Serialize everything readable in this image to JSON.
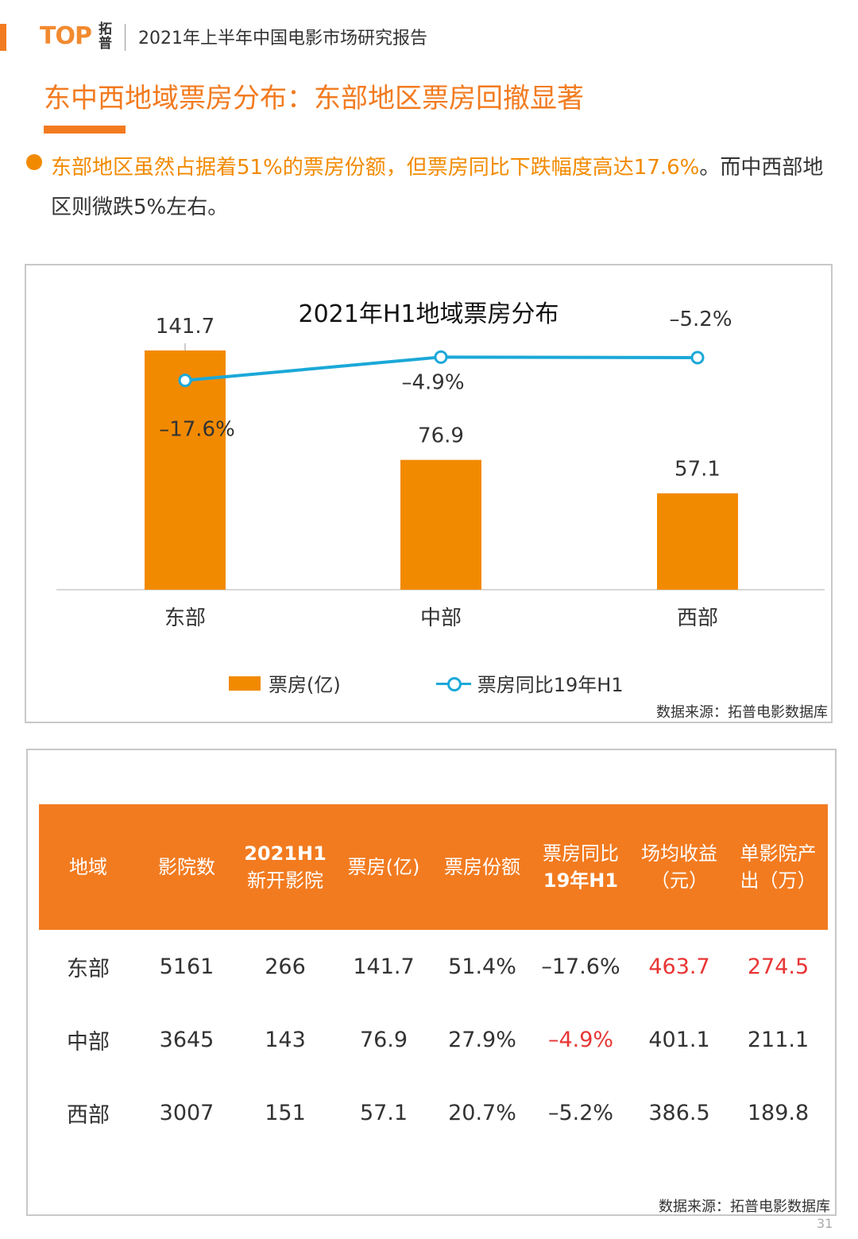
{
  "header": {
    "logo_text": "TOP",
    "logo_cn": "拓普",
    "report_title": "2021年上半年中国电影市场研究报告"
  },
  "page_title": "东中西地域票房分布：东部地区票房回撤显著",
  "summary": {
    "highlight": "东部地区虽然占据着51%的票房份额，但票房同比下跌幅度高达17.6%",
    "rest": "。而中西部地区则微跌5%左右。"
  },
  "chart_data": {
    "type": "bar",
    "title": "2021年H1地域票房分布",
    "categories": [
      "东部",
      "中部",
      "西部"
    ],
    "series": [
      {
        "name": "票房(亿)",
        "type": "bar",
        "values": [
          141.7,
          76.9,
          57.1
        ],
        "labels": [
          "141.7",
          "76.9",
          "57.1"
        ]
      },
      {
        "name": "票房同比19年H1",
        "type": "line",
        "values": [
          -17.6,
          -4.9,
          -5.2
        ],
        "labels": [
          "–17.6%",
          "–4.9%",
          "–5.2%"
        ]
      }
    ],
    "colors": {
      "bar": "#f28a00",
      "line": "#1ba8d8"
    },
    "legend": "bottom",
    "grid": false
  },
  "chart_source": "数据来源：拓普电影数据库",
  "table": {
    "headers": [
      "地域",
      "影院数",
      "2021H1|新开影院",
      "票房(亿)",
      "票房份额",
      "票房同比|19年H1",
      "场均收益|（元）",
      "单影院产|出（万）"
    ],
    "rows": [
      [
        "东部",
        "5161",
        "266",
        "141.7",
        "51.4%",
        "–17.6%",
        "463.7",
        "274.5"
      ],
      [
        "中部",
        "3645",
        "143",
        "76.9",
        "27.9%",
        "–4.9%",
        "401.1",
        "211.1"
      ],
      [
        "西部",
        "3007",
        "151",
        "57.1",
        "20.7%",
        "–5.2%",
        "386.5",
        "189.8"
      ]
    ],
    "highlight_color": "#e83535"
  },
  "table_source": "数据来源：拓普电影数据库",
  "page_number": "31"
}
